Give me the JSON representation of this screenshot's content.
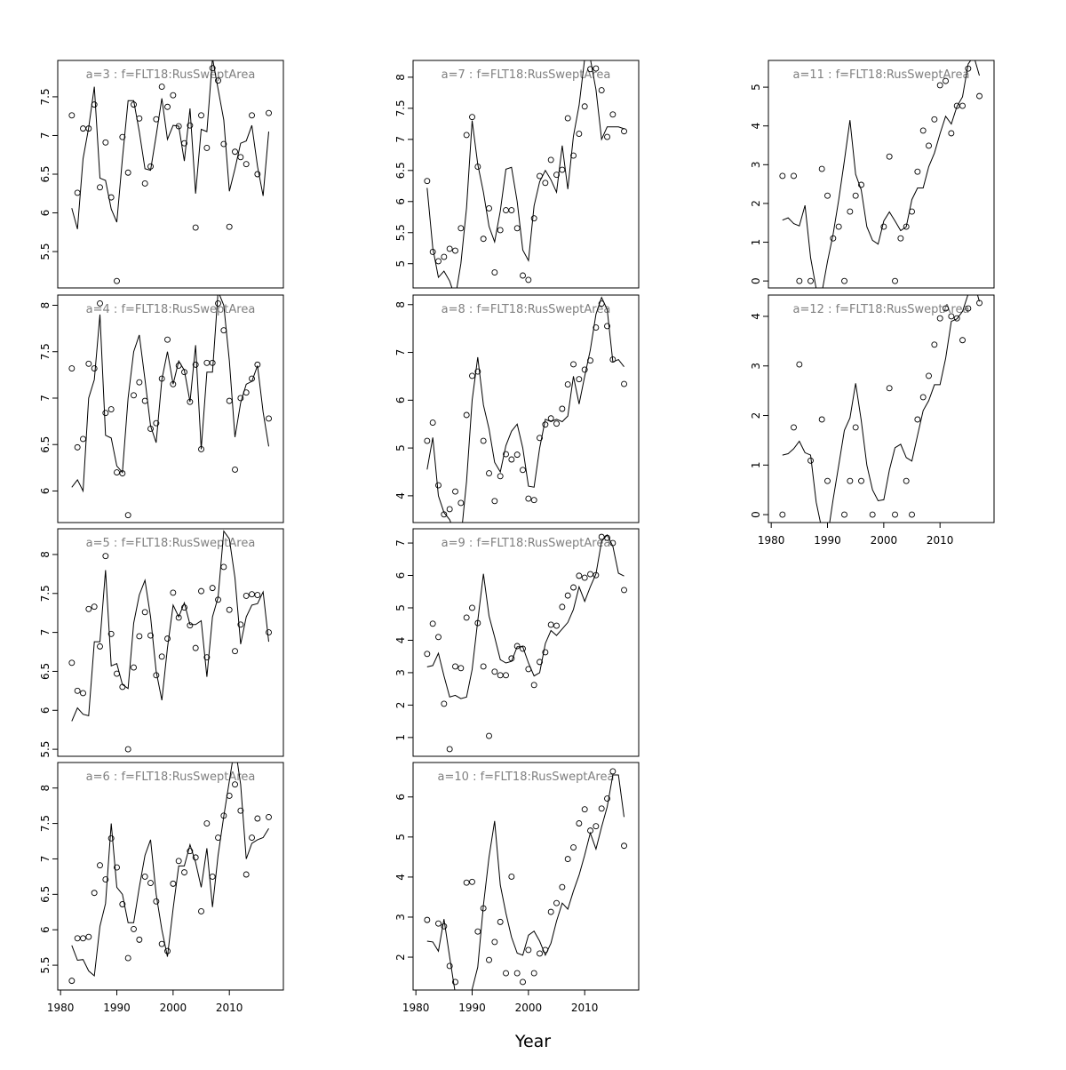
{
  "x_axis": {
    "title": "Year",
    "xlim": [
      1979.5,
      2019.6
    ],
    "xticks": [
      1980,
      1990,
      2000,
      2010
    ],
    "x": [
      1982,
      1983,
      1984,
      1985,
      1986,
      1987,
      1988,
      1989,
      1990,
      1991,
      1992,
      1993,
      1994,
      1995,
      1996,
      1997,
      1998,
      1999,
      2000,
      2001,
      2002,
      2003,
      2004,
      2005,
      2006,
      2007,
      2008,
      2009,
      2010,
      2011,
      2012,
      2013,
      2014,
      2015,
      2016,
      2017
    ]
  },
  "chart_data": [
    {
      "type": "line",
      "title": "a=3  :  f=FLT18:RusSweptArea",
      "ylim": [
        5.03,
        7.97
      ],
      "yticks": [
        5.5,
        6,
        6.5,
        7,
        7.5
      ],
      "series": [
        {
          "style": "points",
          "color": "#000000",
          "values": [
            7.26,
            6.26,
            7.09,
            7.09,
            7.4,
            6.33,
            6.91,
            6.2,
            5.12,
            6.98,
            6.52,
            7.4,
            7.22,
            6.38,
            6.6,
            7.21,
            7.63,
            7.37,
            7.52,
            7.12,
            6.9,
            7.13,
            5.81,
            7.26,
            6.84,
            7.87,
            7.71,
            6.89,
            5.82,
            6.79,
            6.72,
            6.63,
            7.26,
            6.5,
            null,
            7.29
          ]
        },
        {
          "style": "line",
          "color": "#000000",
          "values": [
            6.06,
            5.79,
            6.7,
            7.1,
            7.63,
            6.45,
            6.42,
            6.05,
            5.88,
            6.7,
            7.45,
            7.45,
            7.05,
            6.57,
            6.55,
            7.0,
            7.48,
            6.95,
            7.13,
            7.12,
            6.67,
            7.35,
            6.25,
            7.08,
            7.05,
            8.0,
            7.6,
            7.2,
            6.28,
            6.57,
            6.9,
            6.93,
            7.13,
            6.6,
            6.22,
            7.05
          ]
        }
      ]
    },
    {
      "type": "line",
      "title": "a=4  :  f=FLT18:RusSweptArea",
      "ylim": [
        5.66,
        8.11
      ],
      "yticks": [
        6,
        6.5,
        7,
        7.5,
        8
      ],
      "series": [
        {
          "style": "points",
          "color": "#000000",
          "values": [
            7.32,
            6.47,
            6.56,
            7.37,
            7.32,
            8.02,
            6.84,
            6.88,
            6.2,
            6.19,
            5.74,
            7.03,
            7.17,
            6.97,
            6.67,
            6.73,
            7.21,
            7.63,
            7.15,
            7.35,
            7.28,
            6.96,
            7.36,
            6.45,
            7.38,
            7.38,
            8.02,
            7.73,
            6.97,
            6.23,
            7.0,
            7.06,
            7.21,
            7.36,
            null,
            6.78
          ]
        },
        {
          "style": "line",
          "color": "#000000",
          "values": [
            6.04,
            6.12,
            6.0,
            7.0,
            7.2,
            7.9,
            6.6,
            6.57,
            6.27,
            6.2,
            7.0,
            7.5,
            7.68,
            7.2,
            6.7,
            6.52,
            7.2,
            7.5,
            7.15,
            7.4,
            7.3,
            6.96,
            7.57,
            6.45,
            7.28,
            7.28,
            8.15,
            8.0,
            7.4,
            6.58,
            6.95,
            7.15,
            7.18,
            7.35,
            6.85,
            6.48
          ]
        }
      ]
    },
    {
      "type": "line",
      "title": "a=5  :  f=FLT18:RusSweptArea",
      "ylim": [
        5.41,
        8.33
      ],
      "yticks": [
        5.5,
        6,
        6.5,
        7,
        7.5,
        8
      ],
      "series": [
        {
          "style": "points",
          "color": "#000000",
          "values": [
            6.61,
            6.25,
            6.22,
            7.3,
            7.33,
            6.82,
            7.98,
            6.98,
            6.47,
            6.3,
            5.5,
            6.55,
            6.95,
            7.26,
            6.96,
            6.45,
            6.69,
            6.92,
            7.51,
            7.19,
            7.32,
            7.09,
            6.8,
            7.53,
            6.68,
            7.57,
            7.42,
            7.84,
            7.29,
            6.76,
            7.1,
            7.47,
            7.49,
            7.48,
            null,
            7.0
          ]
        },
        {
          "style": "line",
          "color": "#000000",
          "values": [
            5.86,
            6.03,
            5.95,
            5.93,
            6.88,
            6.88,
            7.8,
            6.57,
            6.6,
            6.33,
            6.28,
            7.12,
            7.48,
            7.67,
            7.2,
            6.5,
            6.13,
            6.8,
            7.35,
            7.2,
            7.38,
            7.1,
            7.1,
            7.15,
            6.43,
            7.2,
            7.45,
            8.3,
            8.2,
            7.7,
            6.85,
            7.2,
            7.35,
            7.37,
            7.52,
            6.88
          ]
        }
      ]
    },
    {
      "type": "line",
      "title": "a=6  :  f=FLT18:RusSweptArea",
      "ylim": [
        5.15,
        8.36
      ],
      "yticks": [
        5.5,
        6,
        6.5,
        7,
        7.5,
        8
      ],
      "series": [
        {
          "style": "points",
          "color": "#000000",
          "values": [
            5.28,
            5.88,
            5.88,
            5.9,
            6.52,
            6.91,
            6.71,
            7.29,
            6.88,
            6.36,
            5.6,
            6.01,
            5.86,
            6.75,
            6.66,
            6.4,
            5.8,
            5.7,
            6.65,
            6.97,
            6.81,
            7.11,
            7.02,
            6.26,
            7.5,
            6.75,
            7.3,
            7.61,
            7.89,
            8.05,
            7.68,
            6.78,
            7.3,
            7.57,
            null,
            7.59
          ]
        },
        {
          "style": "line",
          "color": "#000000",
          "values": [
            5.78,
            5.57,
            5.58,
            5.42,
            5.35,
            6.05,
            6.37,
            7.5,
            6.6,
            6.5,
            6.1,
            6.1,
            6.6,
            7.05,
            7.27,
            6.5,
            6.0,
            5.62,
            6.3,
            6.9,
            6.9,
            7.2,
            6.95,
            6.6,
            7.15,
            6.32,
            7.05,
            7.6,
            8.1,
            8.6,
            8.05,
            7.0,
            7.22,
            7.27,
            7.3,
            7.43
          ]
        }
      ]
    },
    {
      "type": "line",
      "title": "a=7  :  f=FLT18:RusSweptArea",
      "ylim": [
        4.61,
        8.27
      ],
      "yticks": [
        5,
        5.5,
        6,
        6.5,
        7,
        7.5,
        8
      ],
      "series": [
        {
          "style": "points",
          "color": "#000000",
          "values": [
            6.33,
            5.19,
            5.04,
            5.11,
            5.24,
            5.21,
            5.57,
            7.07,
            7.36,
            6.56,
            5.4,
            5.89,
            4.86,
            5.54,
            5.86,
            5.86,
            5.57,
            4.81,
            4.74,
            5.73,
            6.41,
            6.3,
            6.67,
            6.43,
            6.51,
            7.34,
            6.74,
            7.09,
            7.53,
            8.13,
            8.14,
            7.79,
            7.04,
            7.4,
            null,
            7.13
          ]
        },
        {
          "style": "line",
          "color": "#000000",
          "values": [
            6.22,
            5.25,
            4.78,
            4.88,
            4.72,
            4.45,
            5.0,
            5.9,
            7.3,
            6.6,
            6.15,
            5.6,
            5.35,
            5.85,
            6.52,
            6.55,
            6.0,
            5.22,
            5.05,
            5.93,
            6.32,
            6.5,
            6.35,
            6.15,
            6.9,
            6.2,
            7.05,
            7.55,
            8.3,
            8.3,
            7.8,
            7.0,
            7.2,
            7.2,
            7.2,
            7.17
          ]
        }
      ]
    },
    {
      "type": "line",
      "title": "a=8  :  f=FLT18:RusSweptArea",
      "ylim": [
        3.44,
        8.2
      ],
      "yticks": [
        4,
        5,
        6,
        7,
        8
      ],
      "series": [
        {
          "style": "points",
          "color": "#000000",
          "values": [
            5.15,
            5.53,
            4.22,
            3.61,
            3.72,
            4.09,
            3.85,
            5.69,
            6.51,
            6.6,
            5.15,
            4.47,
            3.89,
            4.41,
            4.87,
            4.76,
            4.86,
            4.54,
            3.94,
            3.91,
            5.21,
            5.49,
            5.62,
            5.51,
            5.82,
            6.33,
            6.75,
            6.44,
            6.64,
            6.83,
            7.52,
            8.02,
            7.55,
            6.85,
            null,
            6.34
          ]
        },
        {
          "style": "line",
          "color": "#000000",
          "values": [
            4.55,
            5.22,
            4.0,
            3.65,
            3.5,
            3.2,
            3.1,
            4.3,
            6.0,
            6.9,
            5.9,
            5.4,
            4.7,
            4.5,
            5.05,
            5.35,
            5.5,
            5.0,
            4.2,
            4.18,
            5.0,
            5.6,
            5.55,
            5.6,
            5.55,
            5.67,
            6.5,
            5.92,
            6.5,
            7.05,
            7.8,
            8.15,
            7.9,
            6.8,
            6.85,
            6.7
          ]
        }
      ]
    },
    {
      "type": "line",
      "title": "a=9  :  f=FLT18:RusSweptArea",
      "ylim": [
        0.42,
        7.44
      ],
      "yticks": [
        1,
        2,
        3,
        4,
        5,
        6,
        7
      ],
      "series": [
        {
          "style": "points",
          "color": "#000000",
          "values": [
            3.58,
            4.51,
            4.1,
            2.04,
            0.64,
            3.19,
            3.14,
            4.7,
            5.0,
            4.53,
            3.19,
            1.05,
            3.03,
            2.92,
            2.92,
            3.44,
            3.82,
            3.74,
            3.11,
            2.62,
            3.33,
            3.63,
            4.48,
            4.45,
            5.03,
            5.38,
            5.63,
            5.99,
            5.93,
            6.04,
            6.01,
            7.19,
            7.16,
            7.0,
            null,
            5.55
          ]
        },
        {
          "style": "line",
          "color": "#000000",
          "values": [
            3.18,
            3.22,
            3.6,
            2.9,
            2.25,
            2.3,
            2.2,
            2.25,
            3.1,
            4.6,
            6.05,
            4.75,
            4.1,
            3.4,
            3.3,
            3.35,
            3.8,
            3.8,
            3.3,
            2.9,
            3.0,
            3.9,
            4.3,
            4.15,
            4.35,
            4.55,
            4.95,
            5.65,
            5.2,
            5.65,
            6.05,
            7.05,
            7.25,
            6.9,
            6.07,
            5.98
          ]
        }
      ]
    },
    {
      "type": "line",
      "title": "a=10  :  f=FLT18:RusSweptArea",
      "ylim": [
        1.18,
        6.86
      ],
      "yticks": [
        2,
        3,
        4,
        5,
        6
      ],
      "series": [
        {
          "style": "points",
          "color": "#000000",
          "values": [
            2.93,
            null,
            2.84,
            2.77,
            1.78,
            1.38,
            null,
            3.86,
            3.88,
            2.64,
            3.22,
            1.93,
            2.38,
            2.88,
            1.6,
            4.01,
            1.6,
            1.38,
            2.18,
            1.6,
            2.09,
            2.18,
            3.13,
            3.35,
            3.75,
            4.45,
            4.74,
            5.34,
            5.69,
            5.16,
            5.27,
            5.71,
            5.96,
            6.64,
            null,
            4.78
          ]
        },
        {
          "style": "line",
          "color": "#000000",
          "values": [
            2.4,
            2.38,
            2.15,
            2.95,
            2.0,
            1.1,
            0.7,
            0.9,
            1.2,
            1.75,
            3.3,
            4.5,
            5.4,
            3.8,
            3.1,
            2.5,
            2.1,
            2.05,
            2.55,
            2.65,
            2.4,
            2.05,
            2.35,
            2.9,
            3.35,
            3.2,
            3.65,
            4.05,
            4.55,
            5.1,
            4.7,
            5.25,
            5.75,
            6.55,
            6.55,
            5.5
          ]
        }
      ]
    },
    {
      "type": "line",
      "title": "a=11  :  f=FLT18:RusSweptArea",
      "ylim": [
        -0.18,
        5.69
      ],
      "yticks": [
        0,
        1,
        2,
        3,
        4,
        5
      ],
      "series": [
        {
          "style": "points",
          "color": "#000000",
          "values": [
            2.71,
            null,
            2.71,
            0,
            null,
            0,
            null,
            2.89,
            2.2,
            1.1,
            1.4,
            0,
            1.79,
            2.2,
            2.48,
            null,
            null,
            null,
            1.4,
            3.21,
            0,
            1.1,
            1.4,
            1.79,
            2.82,
            3.88,
            3.49,
            4.17,
            5.05,
            5.16,
            3.81,
            4.52,
            4.52,
            5.48,
            null,
            4.77
          ]
        },
        {
          "style": "line",
          "color": "#000000",
          "values": [
            1.57,
            1.63,
            1.48,
            1.42,
            1.95,
            0.6,
            -0.2,
            -0.3,
            0.5,
            1.2,
            2.1,
            3.1,
            4.15,
            2.75,
            2.35,
            1.4,
            1.05,
            0.95,
            1.55,
            1.78,
            1.55,
            1.3,
            1.4,
            2.1,
            2.4,
            2.4,
            2.95,
            3.3,
            3.8,
            4.25,
            4.05,
            4.5,
            4.75,
            5.6,
            5.8,
            5.3
          ]
        }
      ]
    },
    {
      "type": "line",
      "title": "a=12  :  f=FLT18:RusSweptArea",
      "ylim": [
        -0.16,
        4.43
      ],
      "yticks": [
        0,
        1,
        2,
        3,
        4
      ],
      "series": [
        {
          "style": "points",
          "color": "#000000",
          "values": [
            0,
            null,
            1.76,
            3.03,
            null,
            1.09,
            null,
            1.92,
            0.68,
            null,
            null,
            0,
            0.68,
            1.76,
            0.68,
            null,
            0,
            null,
            null,
            2.55,
            0,
            null,
            0.68,
            0,
            1.92,
            2.37,
            2.8,
            3.43,
            3.96,
            4.16,
            4.0,
            3.96,
            3.52,
            4.16,
            null,
            4.27
          ]
        },
        {
          "style": "line",
          "color": "#000000",
          "values": [
            1.2,
            1.23,
            1.33,
            1.48,
            1.25,
            1.2,
            0.25,
            -0.3,
            -0.45,
            0.3,
            1.0,
            1.7,
            1.95,
            2.65,
            1.9,
            1.0,
            0.5,
            0.28,
            0.3,
            0.9,
            1.35,
            1.42,
            1.15,
            1.08,
            1.6,
            2.1,
            2.3,
            2.62,
            2.62,
            3.15,
            3.9,
            3.95,
            4.1,
            4.45,
            4.7,
            4.3
          ]
        }
      ]
    }
  ]
}
